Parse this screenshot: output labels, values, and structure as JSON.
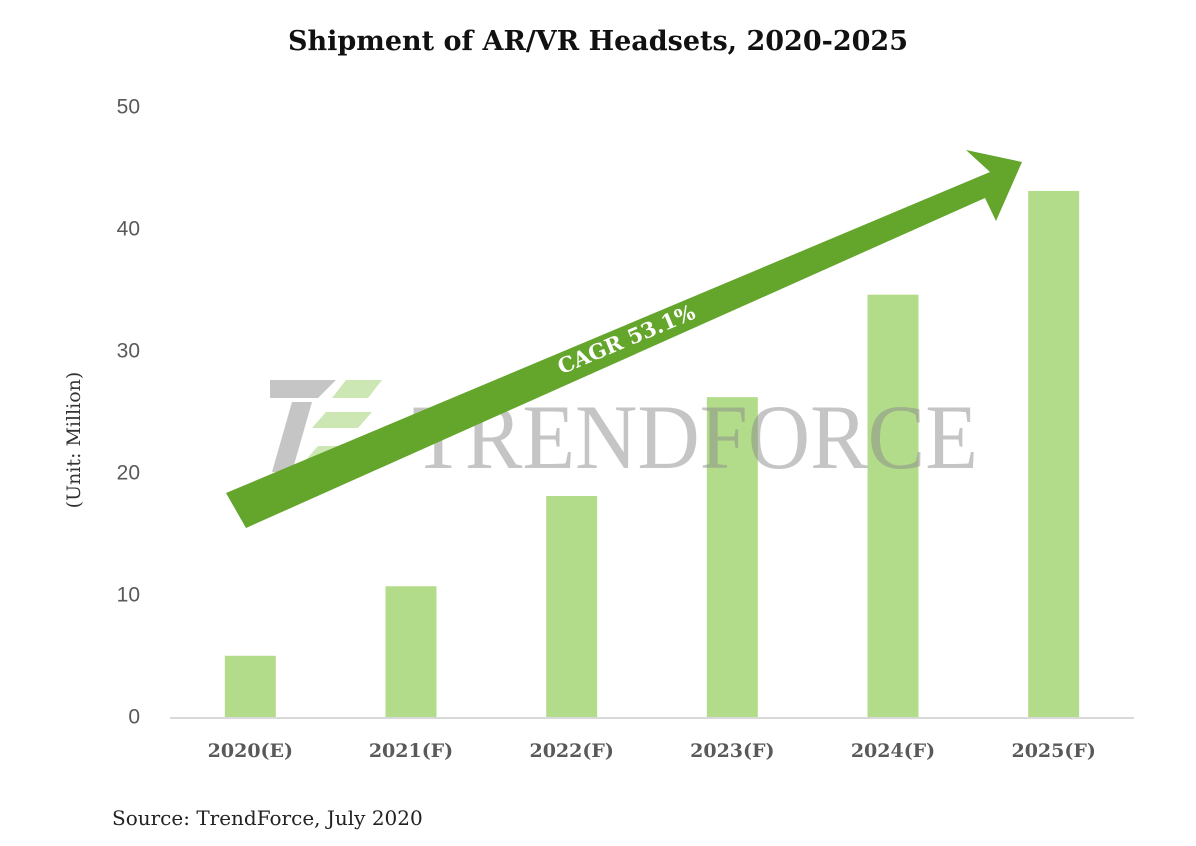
{
  "chart_data": {
    "type": "bar",
    "title": "Shipment of AR/VR Headsets, 2020-2025",
    "ylabel": "(Unit: Million)",
    "xlabel": "",
    "categories": [
      "2020(E)",
      "2021(F)",
      "2022(F)",
      "2023(F)",
      "2024(F)",
      "2025(F)"
    ],
    "values": [
      5.1,
      10.8,
      18.2,
      26.3,
      34.7,
      43.2
    ],
    "ylim": [
      0,
      50
    ],
    "yticks": [
      0,
      10,
      20,
      30,
      40,
      50
    ],
    "grid": false,
    "legend": "none",
    "annotation": "CAGR 53.1%",
    "source": "Source: TrendForce, July 2020",
    "watermark": "TrendForce",
    "colors": {
      "bar": "#b3dc8a",
      "arrow": "#64a52c",
      "axis": "#d9d9d9",
      "tick_text": "#595959",
      "watermark": "#8c8c8c"
    }
  }
}
